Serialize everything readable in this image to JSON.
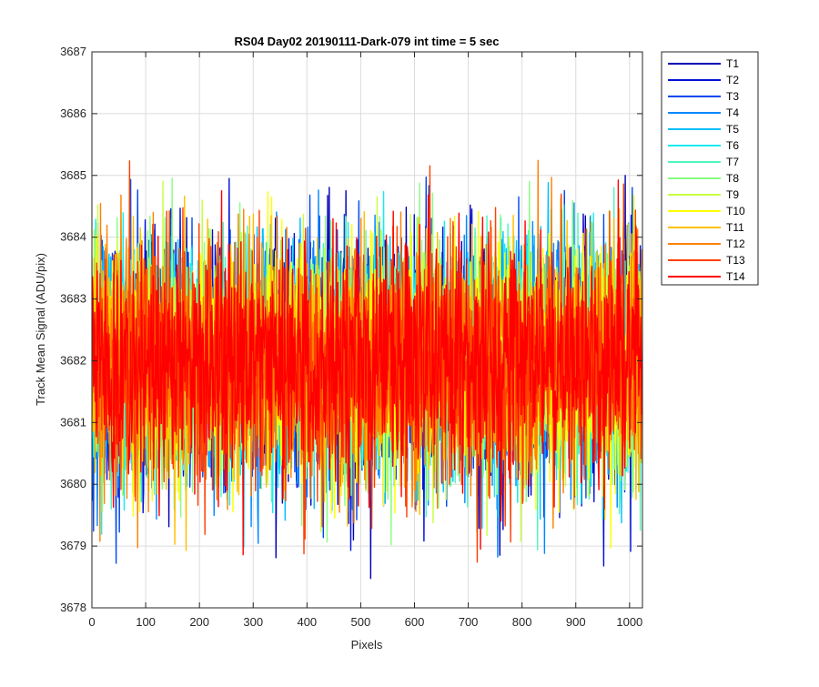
{
  "chart_data": {
    "type": "line",
    "title": "RS04 Day02 20190111-Dark-079 int time = 5 sec",
    "xlabel": "Pixels",
    "ylabel": "Track Mean Signal (ADU/pix)",
    "xlim": [
      0,
      1024
    ],
    "ylim": [
      3678,
      3687
    ],
    "xticks": [
      "0",
      "100",
      "200",
      "300",
      "400",
      "500",
      "600",
      "700",
      "800",
      "900",
      "1000"
    ],
    "yticks": [
      "3678",
      "3679",
      "3680",
      "3681",
      "3682",
      "3683",
      "3684",
      "3685",
      "3686",
      "3687"
    ],
    "grid": true,
    "legend_position": "outside-top-right",
    "n_points": 1024,
    "series": [
      {
        "name": "T1",
        "color": "#0000b4",
        "mean": 3682.0,
        "spread": 1.0
      },
      {
        "name": "T2",
        "color": "#0010d8",
        "mean": 3682.0,
        "spread": 1.0
      },
      {
        "name": "T3",
        "color": "#0048f0",
        "mean": 3682.0,
        "spread": 1.0
      },
      {
        "name": "T4",
        "color": "#0088ff",
        "mean": 3682.0,
        "spread": 1.0
      },
      {
        "name": "T5",
        "color": "#00c0ff",
        "mean": 3682.0,
        "spread": 1.0
      },
      {
        "name": "T6",
        "color": "#14ecf0",
        "mean": 3682.0,
        "spread": 1.0
      },
      {
        "name": "T7",
        "color": "#50f5c0",
        "mean": 3682.0,
        "spread": 1.0
      },
      {
        "name": "T8",
        "color": "#88ff80",
        "mean": 3682.0,
        "spread": 1.0
      },
      {
        "name": "T9",
        "color": "#c8ff40",
        "mean": 3682.0,
        "spread": 1.0
      },
      {
        "name": "T10",
        "color": "#ffff00",
        "mean": 3682.0,
        "spread": 1.0
      },
      {
        "name": "T11",
        "color": "#ffc000",
        "mean": 3682.0,
        "spread": 1.0
      },
      {
        "name": "T12",
        "color": "#ff8000",
        "mean": 3682.0,
        "spread": 1.0
      },
      {
        "name": "T13",
        "color": "#ff4000",
        "mean": 3682.0,
        "spread": 1.0
      },
      {
        "name": "T14",
        "color": "#ff0000",
        "mean": 3682.0,
        "spread": 1.0
      }
    ]
  }
}
